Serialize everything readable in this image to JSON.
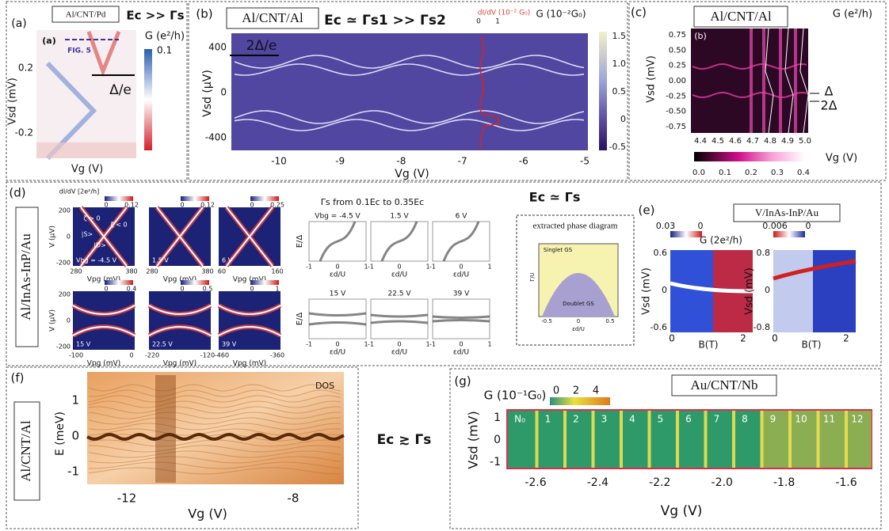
{
  "a": {
    "label": "(a)",
    "device": "Al/CNT/Pd",
    "regime": "Ec >> Γs",
    "inset": "(a)",
    "fig_ref": "FIG. 5",
    "gap": "Δ/e",
    "cbar_title": "G (e²/h)",
    "cbar_ticks": [
      "0.1"
    ],
    "yticks": [
      "0.2",
      "-0.2"
    ],
    "ylabel": "Vsd (mV)",
    "xlabel": "Vg (V)"
  },
  "b": {
    "label": "(b)",
    "device": "Al/CNT/Al",
    "regime": "Ec ≃ Γs1 >> Γs2",
    "trace_label": "dI/dV (10⁻² G₀)",
    "trace_ticks": [
      "0",
      "1"
    ],
    "cbar_title": "G (10⁻²G₀)",
    "cbar_ticks": [
      "1.5",
      "1.0",
      "0.5",
      "0",
      "-0.5"
    ],
    "gap": "2Δ/e",
    "yticks": [
      "400",
      "0",
      "-400"
    ],
    "xticks": [
      "-10",
      "-9",
      "-8",
      "-7",
      "-6",
      "-5"
    ],
    "ylabel": "Vsd (μV)",
    "xlabel": "Vg (V)"
  },
  "c": {
    "label": "(c)",
    "device": "Al/CNT/Al",
    "inset": "(b)",
    "cbar_title": "G (e²/h)",
    "yticks": [
      "0.75",
      "0.50",
      "0.25",
      "0.00",
      "-0.25",
      "-0.50",
      "-0.75"
    ],
    "xticks": [
      "4.4",
      "4.5",
      "4.6",
      "4.7",
      "4.8",
      "4.9",
      "5.0"
    ],
    "ylabel": "Vsd (mV)",
    "xlabel": "Vg (V)",
    "gap_labels": [
      "Δ",
      "2Δ"
    ],
    "cbar_ticks": [
      "0.0",
      "0.1",
      "0.2",
      "0.3",
      "0.4"
    ]
  },
  "d": {
    "label": "(d)",
    "device": "Al/InAs-InP/Au",
    "cbar_title": "dI/dV [2e²/h]",
    "maps": [
      {
        "cbar": [
          "0",
          "0.12"
        ],
        "tag": "Vbg = -4.5 V",
        "xticks": [
          "280",
          "380"
        ]
      },
      {
        "cbar": [
          "0",
          "0.12"
        ],
        "tag": "1.5 V",
        "xticks": [
          "280",
          "380"
        ]
      },
      {
        "cbar": [
          "0",
          "0.25"
        ],
        "tag": "6 V",
        "xticks": [
          "60",
          "160"
        ]
      },
      {
        "cbar": [
          "0",
          "0.4"
        ],
        "tag": "15 V",
        "xticks": [
          "-100",
          "0"
        ]
      },
      {
        "cbar": [
          "0",
          "0.5"
        ],
        "tag": "22.5 V",
        "xticks": [
          "-220",
          "-120"
        ]
      },
      {
        "cbar": [
          "0",
          "1"
        ],
        "tag": "39 V",
        "xticks": [
          "-460",
          "-360"
        ]
      }
    ],
    "yticks": [
      "200",
      "0",
      "-200"
    ],
    "ylabel": "V (μV)",
    "xlabel": "Vpg (mV)",
    "annotations": [
      "ζ > 0",
      "ζ < 0",
      "|S>",
      "|D>"
    ],
    "theory_title": "Γs from 0.1Ec to 0.35Ec",
    "theory_tags": [
      "Vbg = -4.5 V",
      "1.5 V",
      "6 V",
      "15 V",
      "22.5 V",
      "39 V"
    ],
    "theory_ylabel": "E/Δ",
    "theory_xlabel": "εd/U",
    "theory_xticks": [
      "-1",
      "0",
      "1"
    ],
    "regime": "Ec ≃ Γs",
    "phase_title": "extracted phase diagram",
    "phase_regions": [
      "Singlet GS",
      "Doublet GS"
    ],
    "phase_ylabel": "Γ/U",
    "phase_xlabel": "εd/U",
    "phase_xticks": [
      "-0.5",
      "0",
      "0.5"
    ]
  },
  "e": {
    "label": "(e)",
    "device": "V/InAs-InP/Au",
    "cbar_title": "G (2e²/h)",
    "maps": [
      {
        "cbar": [
          "0.03",
          "0"
        ],
        "yticks": [
          "0.6",
          "0",
          "-0.6"
        ]
      },
      {
        "cbar": [
          "0.006",
          "0"
        ],
        "yticks": [
          "0.8",
          "0",
          "-0.8"
        ]
      }
    ],
    "ylabel": "Vsd (mV)",
    "xlabel": "B(T)",
    "xticks": [
      "0",
      "2"
    ]
  },
  "f": {
    "label": "(f)",
    "device": "Al/CNT/Al",
    "inset": "DOS",
    "yticks": [
      "1",
      "0",
      "-1"
    ],
    "xticks": [
      "-12",
      "-8"
    ],
    "ylabel": "E (meV)",
    "xlabel": "Vg (V)",
    "regime": "Ec ≳ Γs"
  },
  "g": {
    "label": "(g)",
    "device": "Au/CNT/Nb",
    "cbar_title": "G (10⁻¹G₀)",
    "cbar_ticks": [
      "0",
      "2",
      "4"
    ],
    "states": [
      "N₀",
      "1",
      "2",
      "3",
      "4",
      "5",
      "6",
      "7",
      "8",
      "9",
      "10",
      "11",
      "12"
    ],
    "yticks": [
      "1",
      "0",
      "-1"
    ],
    "xticks": [
      "-2.6",
      "-2.4",
      "-2.2",
      "-2.0",
      "-1.8",
      "-1.6"
    ],
    "ylabel": "Vsd (mV)",
    "xlabel": "Vg (V)"
  }
}
